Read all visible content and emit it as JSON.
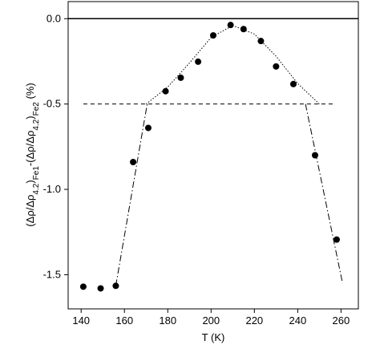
{
  "chart_data": {
    "type": "scatter",
    "xlabel": "T (K)",
    "ylabel_parts": [
      {
        "text": "(Δρ/Δρ",
        "sub": false
      },
      {
        "text": "4.2",
        "sub": true
      },
      {
        "text": ")",
        "sub": false
      },
      {
        "text": "Fe1",
        "sub": true
      },
      {
        "text": "-(Δρ/Δρ",
        "sub": false
      },
      {
        "text": "4.2",
        "sub": true
      },
      {
        "text": ")",
        "sub": false
      },
      {
        "text": "Fe2",
        "sub": true
      },
      {
        "text": " (%)",
        "sub": false
      }
    ],
    "xlim": [
      134,
      268
    ],
    "ylim": [
      -1.7,
      0.1
    ],
    "xticks": [
      140,
      160,
      180,
      200,
      220,
      240,
      260
    ],
    "yticks": [
      {
        "value": 0,
        "label": "0.0"
      },
      -0.5,
      {
        "value": -1,
        "label": "-1.0"
      },
      -1.5
    ],
    "series": [
      {
        "style": "points",
        "color": "#000000",
        "x": [
          141,
          149,
          156,
          164,
          171,
          179,
          186,
          194,
          201,
          209,
          215,
          223,
          230,
          238,
          248,
          258
        ],
        "values": [
          -1.57,
          -1.58,
          -1.565,
          -0.84,
          -0.64,
          -0.425,
          -0.346,
          -0.252,
          -0.098,
          -0.037,
          -0.061,
          -0.131,
          -0.28,
          -0.383,
          -0.8,
          -1.294
        ]
      },
      {
        "style": "solid",
        "color": "#000000",
        "x": [
          134,
          268
        ],
        "values": [
          0,
          0
        ]
      },
      {
        "style": "dashed",
        "color": "#000000",
        "x": [
          141,
          257
        ],
        "values": [
          -0.5,
          -0.5
        ]
      },
      {
        "style": "dotted",
        "color": "#000000",
        "x": [
          170,
          180,
          190,
          200,
          210,
          220,
          230,
          240,
          250
        ],
        "values": [
          -0.5,
          -0.4,
          -0.26,
          -0.11,
          -0.04,
          -0.09,
          -0.22,
          -0.38,
          -0.5
        ]
      },
      {
        "style": "dashdot",
        "color": "#000000",
        "x": [
          156,
          170.5,
          null,
          243.6,
          260.7
        ],
        "values": [
          -1.565,
          -0.5,
          null,
          -0.5,
          -1.55
        ]
      }
    ]
  }
}
